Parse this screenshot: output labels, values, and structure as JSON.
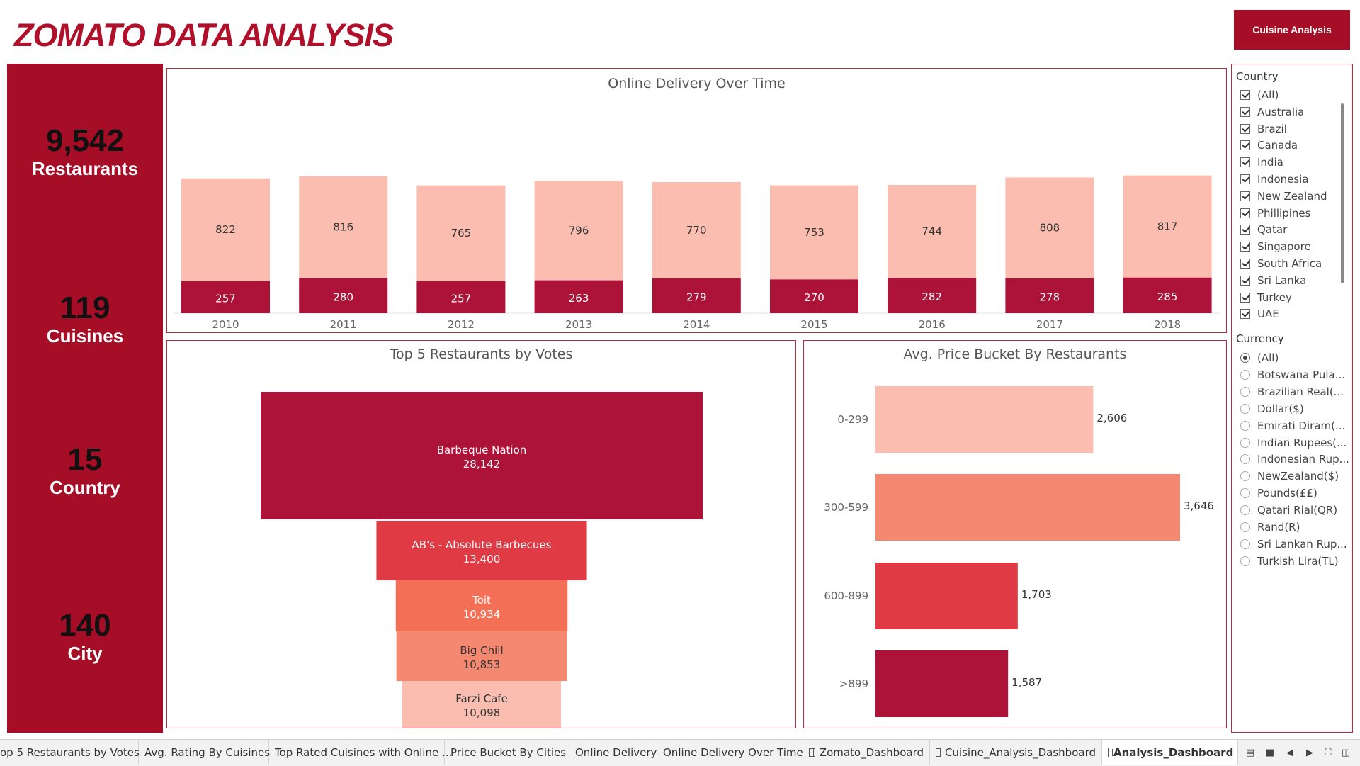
{
  "header": {
    "title": "ZOMATO DATA ANALYSIS",
    "cuisine_button": "Cuisine Analysis"
  },
  "colors": {
    "brand": "#a60d26",
    "light_pink": "#fbbdaf",
    "salmon": "#f58870",
    "coral": "#f36f56",
    "red": "#e03a45",
    "crimson": "#ad1238"
  },
  "kpis": [
    {
      "value": "9,542",
      "label": "Restaurants"
    },
    {
      "value": "119",
      "label": "Cuisines"
    },
    {
      "value": "15",
      "label": "Country"
    },
    {
      "value": "140",
      "label": "City"
    }
  ],
  "delivery_chart": {
    "title": "Online Delivery Over Time"
  },
  "votes_chart": {
    "title": "Top 5 Restaurants by Votes"
  },
  "price_chart": {
    "title": "Avg. Price Bucket By Restaurants"
  },
  "chart_data": [
    {
      "type": "bar",
      "stacked": true,
      "title": "Online Delivery Over Time",
      "categories": [
        "2010",
        "2011",
        "2012",
        "2013",
        "2014",
        "2015",
        "2016",
        "2017",
        "2018"
      ],
      "series": [
        {
          "values": [
            257,
            280,
            257,
            263,
            279,
            270,
            282,
            278,
            285
          ],
          "color": "#ad1238"
        },
        {
          "values": [
            822,
            816,
            765,
            796,
            770,
            753,
            744,
            808,
            817
          ],
          "color": "#fbbdaf"
        }
      ],
      "grid": false
    },
    {
      "type": "bar",
      "orientation": "funnel",
      "title": "Top 5 Restaurants by Votes",
      "categories": [
        "Barbeque Nation",
        "AB's - Absolute Barbecues",
        "Toit",
        "Big Chill",
        "Farzi Cafe"
      ],
      "values": [
        28142,
        13400,
        10934,
        10853,
        10098
      ],
      "value_labels": [
        "28,142",
        "13,400",
        "10,934",
        "10,853",
        "10,098"
      ],
      "colors": [
        "#ad1238",
        "#e03a45",
        "#f36f56",
        "#f58870",
        "#fbbdaf"
      ]
    },
    {
      "type": "bar",
      "orientation": "horizontal",
      "title": "Avg. Price Bucket By Restaurants",
      "categories": [
        "0-299",
        "300-599",
        "600-899",
        ">899"
      ],
      "values": [
        2606,
        3646,
        1703,
        1587
      ],
      "value_labels": [
        "2,606",
        "3,646",
        "1,703",
        "1,587"
      ],
      "colors": [
        "#fbbdaf",
        "#f58870",
        "#e03a45",
        "#ad1238"
      ]
    }
  ],
  "filters": {
    "country_heading": "Country",
    "countries": [
      "(All)",
      "Australia",
      "Brazil",
      "Canada",
      "India",
      "Indonesia",
      "New Zealand",
      "Phillipines",
      "Qatar",
      "Singapore",
      "South Africa",
      "Sri Lanka",
      "Turkey",
      "UAE"
    ],
    "currency_heading": "Currency",
    "currencies": [
      "(All)",
      "Botswana Pula...",
      "Brazilian Real(...",
      "Dollar($)",
      "Emirati Diram(...",
      "Indian Rupees(...",
      "Indonesian Rup...",
      "NewZealand($)",
      "Pounds(££)",
      "Qatari Rial(QR)",
      "Rand(R)",
      "Sri Lankan Rup...",
      "Turkish Lira(TL)"
    ],
    "currency_selected": "(All)"
  },
  "tabs": [
    {
      "label": "op 5 Restaurants by Votes",
      "icon": "",
      "active": false
    },
    {
      "label": "Avg. Rating By Cuisines",
      "icon": "",
      "active": false
    },
    {
      "label": "Top Rated Cuisines with Online ...",
      "icon": "",
      "active": false
    },
    {
      "label": "Price Bucket By Cities",
      "icon": "",
      "active": false
    },
    {
      "label": "Online Delivery",
      "icon": "",
      "active": false
    },
    {
      "label": "Online Delivery Over Time",
      "icon": "",
      "active": false
    },
    {
      "label": "Zomato_Dashboard",
      "icon": "dashboard-icon",
      "active": false
    },
    {
      "label": "Cuisine_Analysis_Dashboard",
      "icon": "dashboard-icon",
      "active": false
    },
    {
      "label": "Analysis_Dashboard",
      "icon": "dashboard-icon",
      "active": true
    }
  ]
}
